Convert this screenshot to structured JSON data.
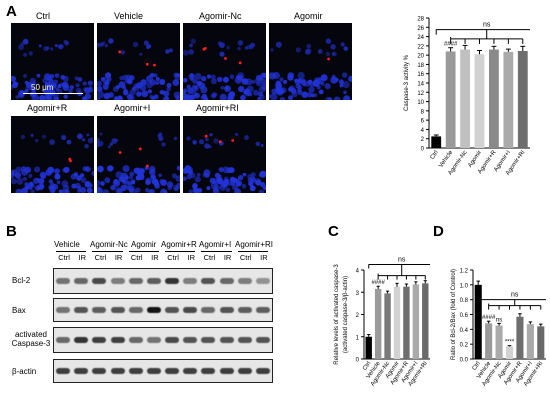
{
  "panels": {
    "A": "A",
    "B": "B",
    "C": "C",
    "D": "D"
  },
  "micrographs": {
    "labels": [
      "Ctrl",
      "Vehicle",
      "Agomir-Nc",
      "Agomir",
      "Agomir+R",
      "Agomir+I",
      "Agomir+RI"
    ],
    "red_counts": [
      0,
      3,
      4,
      1,
      2,
      3,
      3
    ],
    "scale_bar": "50 μm"
  },
  "western": {
    "groups": [
      "Vehicle",
      "Agomir-Nc",
      "Agomir",
      "Agomir+R",
      "Agomir+I",
      "Agomir+RI"
    ],
    "lanes": [
      "Ctrl",
      "IR"
    ],
    "rows": [
      "Bcl-2",
      "Bax",
      "activated\nCaspase-3",
      "β-actin"
    ],
    "intensity": [
      [
        0.55,
        0.6,
        0.75,
        0.5,
        0.6,
        0.65,
        0.85,
        0.5,
        0.7,
        0.6,
        0.5,
        0.4
      ],
      [
        0.55,
        0.7,
        0.65,
        0.7,
        0.6,
        1.0,
        0.7,
        0.75,
        0.6,
        0.7,
        0.65,
        0.65
      ],
      [
        0.6,
        0.85,
        0.8,
        0.8,
        0.6,
        0.55,
        0.75,
        0.7,
        0.7,
        0.7,
        0.7,
        0.7
      ],
      [
        0.8,
        0.8,
        0.8,
        0.8,
        0.8,
        0.8,
        0.8,
        0.8,
        0.8,
        0.8,
        0.8,
        0.8
      ]
    ]
  },
  "colors": {
    "black": "#000000",
    "gray_dark": "#666666",
    "gray_mid": "#9a9a9a",
    "gray_light": "#cfcfcf"
  },
  "chart_data": [
    {
      "id": "A",
      "type": "bar",
      "categories": [
        "Ctrl",
        "Vehicle",
        "Agomir-Nc",
        "Agomir",
        "Agomir+R",
        "Agomir+I",
        "Agomir+RI"
      ],
      "values": [
        2.5,
        20.8,
        21.2,
        20.2,
        21.2,
        20.7,
        20.9
      ],
      "errors": [
        0.3,
        0.8,
        0.9,
        0.8,
        0.7,
        0.6,
        1.0
      ],
      "bar_colors": [
        "#000000",
        "#9a9a9a",
        "#c0c0c0",
        "#d2d2d2",
        "#8a8a8a",
        "#aaaaaa",
        "#6e6e6e"
      ],
      "ylabel": "Caspase-3 activity %",
      "yticks": [
        0,
        2,
        4,
        6,
        8,
        10,
        12,
        14,
        16,
        18,
        20,
        22,
        24,
        26,
        28
      ],
      "ylim": [
        0,
        28
      ],
      "annotations": [
        {
          "text": "####",
          "bar": 1
        },
        {
          "text": "ns",
          "bracket": true
        }
      ]
    },
    {
      "id": "C",
      "type": "bar",
      "categories": [
        "Ctrl",
        "Vehicle",
        "Agomir-Nc",
        "Agomir",
        "Agomir+R",
        "Agomir+I",
        "Agomir+RI"
      ],
      "values": [
        1.0,
        3.15,
        2.95,
        3.25,
        3.25,
        3.35,
        3.4
      ],
      "errors": [
        0.1,
        0.12,
        0.1,
        0.15,
        0.12,
        0.12,
        0.12
      ],
      "bar_colors": [
        "#000000",
        "#9a9a9a",
        "#7a7a7a",
        "#d2d2d2",
        "#6e6e6e",
        "#aaaaaa",
        "#6a6a6a"
      ],
      "ylabel": "Relative levels of activated caspase-3\n(activated caspase-3/β-actin)",
      "yticks": [
        0,
        1,
        2,
        3,
        4
      ],
      "ylim": [
        0,
        4
      ],
      "annotations": [
        {
          "text": "####",
          "bar": 1
        },
        {
          "text": "ns",
          "bracket": true
        }
      ]
    },
    {
      "id": "D",
      "type": "bar",
      "categories": [
        "Ctrl",
        "Vehicle",
        "Agomir-Nc",
        "Agomir",
        "Agomir+R",
        "Agomir+I",
        "Agomir+RI"
      ],
      "values": [
        1.0,
        0.48,
        0.45,
        0.17,
        0.57,
        0.47,
        0.44
      ],
      "errors": [
        0.05,
        0.03,
        0.03,
        0.01,
        0.04,
        0.03,
        0.03
      ],
      "bar_colors": [
        "#000000",
        "#9a9a9a",
        "#aaaaaa",
        "#d2d2d2",
        "#6e6e6e",
        "#aaaaaa",
        "#6a6a6a"
      ],
      "ylabel": "Ratio of Bcl-2/Bax (fold of Control)",
      "yticks": [
        0.0,
        0.2,
        0.4,
        0.6,
        0.8,
        1.0,
        1.2
      ],
      "ylim": [
        0,
        1.2
      ],
      "annotations": [
        {
          "text": "####",
          "bar": 1
        },
        {
          "text": "ns",
          "bar": 2
        },
        {
          "text": "****",
          "bar": 3
        },
        {
          "text": "ns",
          "bracket": true
        }
      ]
    }
  ]
}
